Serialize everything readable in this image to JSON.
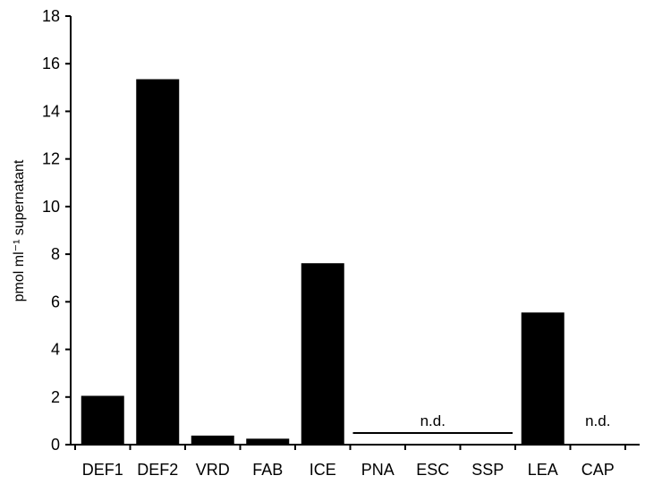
{
  "chart_data": {
    "type": "bar",
    "categories": [
      "DEF1",
      "DEF2",
      "VRD",
      "FAB",
      "ICE",
      "PNA",
      "ESC",
      "SSP",
      "LEA",
      "CAP"
    ],
    "values": [
      2.05,
      15.35,
      0.38,
      0.25,
      7.62,
      null,
      null,
      null,
      5.55,
      null
    ],
    "ylabel": "pmol ml⁻¹ supernatant",
    "ylim": [
      0,
      18
    ],
    "yticks": [
      0,
      2,
      4,
      6,
      8,
      10,
      12,
      14,
      16,
      18
    ],
    "grid": false,
    "bar_color": "#000000",
    "annotations": [
      {
        "text": "n.d.",
        "categories": [
          "PNA",
          "ESC",
          "SSP"
        ]
      },
      {
        "text": "n.d.",
        "categories": [
          "CAP"
        ]
      }
    ]
  }
}
